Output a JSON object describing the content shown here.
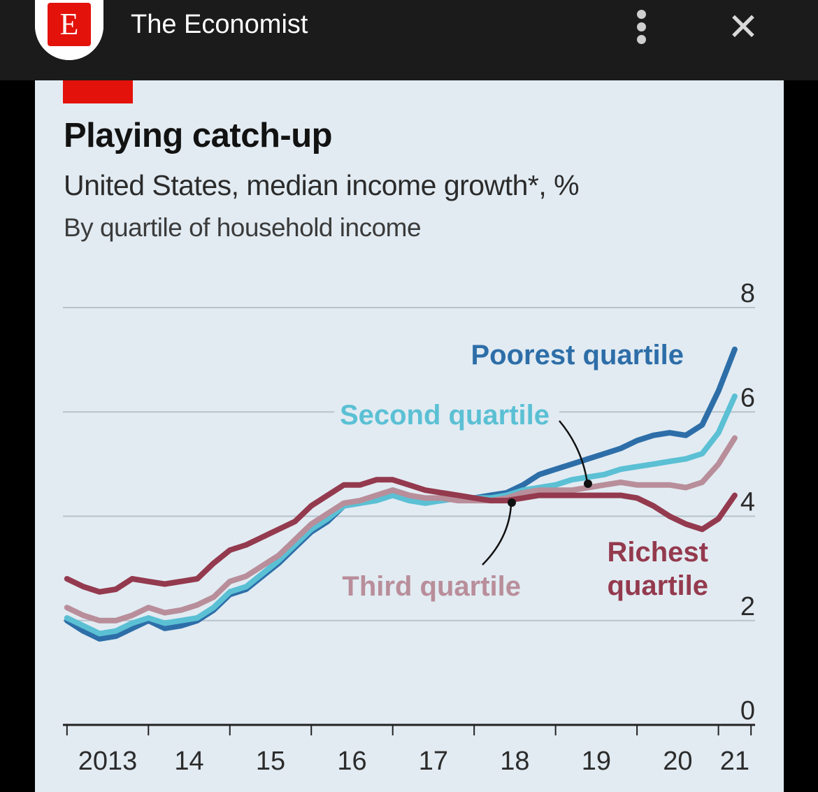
{
  "app": {
    "name": "The Economist",
    "logo_letter": "E",
    "close_symbol": "✕"
  },
  "colors": {
    "poorest": "#2d6ea8",
    "second": "#5bc0d4",
    "third": "#b88e9a",
    "richest": "#943a4e",
    "gridline": "#b7c3cc",
    "brand": "#e3120b"
  },
  "chart_data": {
    "type": "line",
    "title": "Playing catch-up",
    "subtitle": "United States, median income growth*, %",
    "subtitle2": "By quartile of household income",
    "xlabel": "",
    "ylabel": "",
    "x_tick_labels": [
      "2013",
      "14",
      "15",
      "16",
      "17",
      "18",
      "19",
      "20",
      "21"
    ],
    "y_ticks": [
      0,
      2,
      4,
      6,
      8
    ],
    "y_tick_labels": [
      "0",
      "2",
      "4",
      "6",
      "8"
    ],
    "ylim": [
      0,
      8
    ],
    "xlim": [
      2012.95,
      2021.45
    ],
    "grid": true,
    "series": [
      {
        "key": "poorest",
        "name": "Poorest quartile",
        "points": [
          [
            2013.0,
            2.0
          ],
          [
            2013.2,
            1.8
          ],
          [
            2013.4,
            1.65
          ],
          [
            2013.6,
            1.7
          ],
          [
            2013.8,
            1.85
          ],
          [
            2014.0,
            2.0
          ],
          [
            2014.2,
            1.85
          ],
          [
            2014.4,
            1.9
          ],
          [
            2014.6,
            2.0
          ],
          [
            2014.8,
            2.2
          ],
          [
            2015.0,
            2.5
          ],
          [
            2015.2,
            2.6
          ],
          [
            2015.4,
            2.85
          ],
          [
            2015.6,
            3.1
          ],
          [
            2015.8,
            3.4
          ],
          [
            2016.0,
            3.7
          ],
          [
            2016.2,
            3.9
          ],
          [
            2016.4,
            4.2
          ],
          [
            2016.6,
            4.25
          ],
          [
            2016.8,
            4.35
          ],
          [
            2017.0,
            4.5
          ],
          [
            2017.2,
            4.4
          ],
          [
            2017.4,
            4.3
          ],
          [
            2017.6,
            4.3
          ],
          [
            2017.8,
            4.35
          ],
          [
            2018.0,
            4.35
          ],
          [
            2018.2,
            4.4
          ],
          [
            2018.4,
            4.45
          ],
          [
            2018.6,
            4.6
          ],
          [
            2018.8,
            4.8
          ],
          [
            2019.0,
            4.9
          ],
          [
            2019.2,
            5.0
          ],
          [
            2019.4,
            5.1
          ],
          [
            2019.6,
            5.2
          ],
          [
            2019.8,
            5.3
          ],
          [
            2020.0,
            5.45
          ],
          [
            2020.2,
            5.55
          ],
          [
            2020.4,
            5.6
          ],
          [
            2020.6,
            5.55
          ],
          [
            2020.8,
            5.75
          ],
          [
            2021.0,
            6.4
          ],
          [
            2021.2,
            7.2
          ]
        ]
      },
      {
        "key": "second",
        "name": "Second quartile",
        "points": [
          [
            2013.0,
            2.05
          ],
          [
            2013.2,
            1.9
          ],
          [
            2013.4,
            1.75
          ],
          [
            2013.6,
            1.8
          ],
          [
            2013.8,
            1.95
          ],
          [
            2014.0,
            2.05
          ],
          [
            2014.2,
            1.95
          ],
          [
            2014.4,
            2.0
          ],
          [
            2014.6,
            2.05
          ],
          [
            2014.8,
            2.25
          ],
          [
            2015.0,
            2.55
          ],
          [
            2015.2,
            2.65
          ],
          [
            2015.4,
            2.9
          ],
          [
            2015.6,
            3.15
          ],
          [
            2015.8,
            3.45
          ],
          [
            2016.0,
            3.75
          ],
          [
            2016.2,
            3.95
          ],
          [
            2016.4,
            4.2
          ],
          [
            2016.6,
            4.25
          ],
          [
            2016.8,
            4.3
          ],
          [
            2017.0,
            4.4
          ],
          [
            2017.2,
            4.3
          ],
          [
            2017.4,
            4.25
          ],
          [
            2017.6,
            4.3
          ],
          [
            2017.8,
            4.35
          ],
          [
            2018.0,
            4.35
          ],
          [
            2018.2,
            4.35
          ],
          [
            2018.4,
            4.4
          ],
          [
            2018.6,
            4.5
          ],
          [
            2018.8,
            4.55
          ],
          [
            2019.0,
            4.6
          ],
          [
            2019.2,
            4.7
          ],
          [
            2019.4,
            4.75
          ],
          [
            2019.6,
            4.8
          ],
          [
            2019.8,
            4.9
          ],
          [
            2020.0,
            4.95
          ],
          [
            2020.2,
            5.0
          ],
          [
            2020.4,
            5.05
          ],
          [
            2020.6,
            5.1
          ],
          [
            2020.8,
            5.2
          ],
          [
            2021.0,
            5.6
          ],
          [
            2021.2,
            6.3
          ]
        ]
      },
      {
        "key": "third",
        "name": "Third quartile",
        "points": [
          [
            2013.0,
            2.25
          ],
          [
            2013.2,
            2.1
          ],
          [
            2013.4,
            2.0
          ],
          [
            2013.6,
            2.0
          ],
          [
            2013.8,
            2.1
          ],
          [
            2014.0,
            2.25
          ],
          [
            2014.2,
            2.15
          ],
          [
            2014.4,
            2.2
          ],
          [
            2014.6,
            2.3
          ],
          [
            2014.8,
            2.45
          ],
          [
            2015.0,
            2.75
          ],
          [
            2015.2,
            2.85
          ],
          [
            2015.4,
            3.05
          ],
          [
            2015.6,
            3.25
          ],
          [
            2015.8,
            3.55
          ],
          [
            2016.0,
            3.85
          ],
          [
            2016.2,
            4.05
          ],
          [
            2016.4,
            4.25
          ],
          [
            2016.6,
            4.3
          ],
          [
            2016.8,
            4.4
          ],
          [
            2017.0,
            4.5
          ],
          [
            2017.2,
            4.4
          ],
          [
            2017.4,
            4.35
          ],
          [
            2017.6,
            4.35
          ],
          [
            2017.8,
            4.3
          ],
          [
            2018.0,
            4.3
          ],
          [
            2018.2,
            4.3
          ],
          [
            2018.4,
            4.35
          ],
          [
            2018.6,
            4.45
          ],
          [
            2018.8,
            4.5
          ],
          [
            2019.0,
            4.5
          ],
          [
            2019.2,
            4.5
          ],
          [
            2019.4,
            4.55
          ],
          [
            2019.6,
            4.6
          ],
          [
            2019.8,
            4.65
          ],
          [
            2020.0,
            4.6
          ],
          [
            2020.2,
            4.6
          ],
          [
            2020.4,
            4.6
          ],
          [
            2020.6,
            4.55
          ],
          [
            2020.8,
            4.65
          ],
          [
            2021.0,
            5.0
          ],
          [
            2021.2,
            5.5
          ]
        ]
      },
      {
        "key": "richest",
        "name": "Richest quartile",
        "name_lines": [
          "Richest",
          "quartile"
        ],
        "points": [
          [
            2013.0,
            2.8
          ],
          [
            2013.2,
            2.65
          ],
          [
            2013.4,
            2.55
          ],
          [
            2013.6,
            2.6
          ],
          [
            2013.8,
            2.8
          ],
          [
            2014.0,
            2.75
          ],
          [
            2014.2,
            2.7
          ],
          [
            2014.4,
            2.75
          ],
          [
            2014.6,
            2.8
          ],
          [
            2014.8,
            3.1
          ],
          [
            2015.0,
            3.35
          ],
          [
            2015.2,
            3.45
          ],
          [
            2015.4,
            3.6
          ],
          [
            2015.6,
            3.75
          ],
          [
            2015.8,
            3.9
          ],
          [
            2016.0,
            4.2
          ],
          [
            2016.2,
            4.4
          ],
          [
            2016.4,
            4.6
          ],
          [
            2016.6,
            4.6
          ],
          [
            2016.8,
            4.7
          ],
          [
            2017.0,
            4.7
          ],
          [
            2017.2,
            4.6
          ],
          [
            2017.4,
            4.5
          ],
          [
            2017.6,
            4.45
          ],
          [
            2017.8,
            4.4
          ],
          [
            2018.0,
            4.35
          ],
          [
            2018.2,
            4.3
          ],
          [
            2018.4,
            4.3
          ],
          [
            2018.6,
            4.35
          ],
          [
            2018.8,
            4.4
          ],
          [
            2019.0,
            4.4
          ],
          [
            2019.2,
            4.4
          ],
          [
            2019.4,
            4.4
          ],
          [
            2019.6,
            4.4
          ],
          [
            2019.8,
            4.4
          ],
          [
            2020.0,
            4.35
          ],
          [
            2020.2,
            4.2
          ],
          [
            2020.4,
            4.0
          ],
          [
            2020.6,
            3.85
          ],
          [
            2020.8,
            3.75
          ],
          [
            2021.0,
            3.95
          ],
          [
            2021.2,
            4.4
          ]
        ]
      }
    ]
  }
}
